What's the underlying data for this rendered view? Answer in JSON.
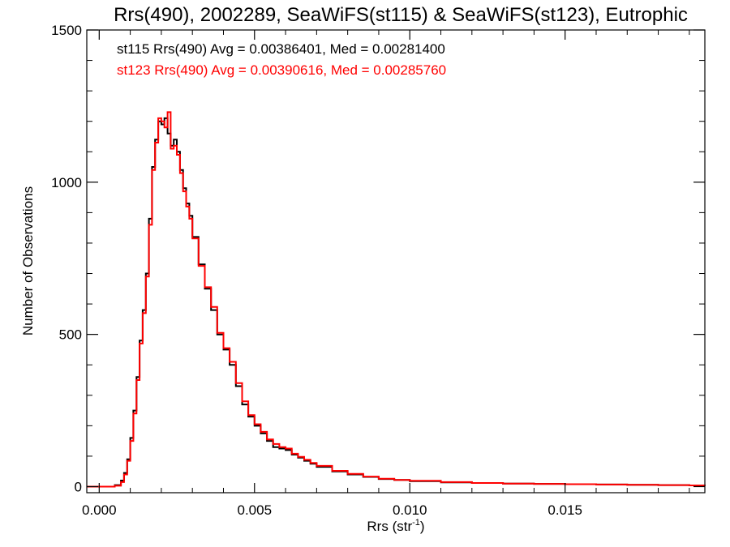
{
  "chart_data": {
    "type": "line",
    "title": "Rrs(490), 2002289, SeaWiFS(st115) & SeaWiFS(st123), Eutrophic",
    "xlabel": "Rrs (str",
    "xlabel_sup": "-1",
    "xlabel_close": ")",
    "ylabel": "Number of Observations",
    "xlim": [
      -0.0004,
      0.0195
    ],
    "ylim": [
      -20,
      1500
    ],
    "xticks": [
      0.0,
      0.005,
      0.01,
      0.015
    ],
    "xtick_labels": [
      "0.000",
      "0.005",
      "0.010",
      "0.015"
    ],
    "yticks": [
      0,
      500,
      1000,
      1500
    ],
    "ytick_labels": [
      "0",
      "500",
      "1000",
      "1500"
    ],
    "grid": false,
    "legend_position": "top-left",
    "annotations": [
      {
        "text": "st115 Rrs(490) Avg = 0.00386401, Med = 0.00281400",
        "color": "#000000"
      },
      {
        "text": "st123 Rrs(490) Avg = 0.00390616, Med = 0.00285760",
        "color": "#ff0000"
      }
    ],
    "series": [
      {
        "color": "#000000",
        "x": [
          -0.0004,
          0.0002,
          0.0005,
          0.0007,
          0.0008,
          0.0009,
          0.001,
          0.0011,
          0.0012,
          0.0013,
          0.0014,
          0.0015,
          0.0016,
          0.0017,
          0.0018,
          0.0019,
          0.002,
          0.0021,
          0.0022,
          0.0023,
          0.0024,
          0.0025,
          0.0026,
          0.0027,
          0.0028,
          0.0029,
          0.003,
          0.0032,
          0.0034,
          0.0036,
          0.0038,
          0.004,
          0.0042,
          0.0044,
          0.0046,
          0.0048,
          0.005,
          0.0052,
          0.0054,
          0.0056,
          0.0058,
          0.006,
          0.0062,
          0.0064,
          0.0066,
          0.0068,
          0.007,
          0.0075,
          0.008,
          0.0085,
          0.009,
          0.0095,
          0.01,
          0.011,
          0.012,
          0.013,
          0.014,
          0.015,
          0.016,
          0.017,
          0.018,
          0.019,
          0.0195
        ],
        "y": [
          0,
          0,
          5,
          20,
          45,
          90,
          160,
          250,
          360,
          480,
          580,
          700,
          880,
          1050,
          1140,
          1200,
          1190,
          1210,
          1160,
          1120,
          1140,
          1100,
          1040,
          980,
          930,
          890,
          820,
          730,
          650,
          580,
          500,
          450,
          400,
          330,
          270,
          230,
          200,
          175,
          150,
          130,
          125,
          120,
          105,
          95,
          85,
          75,
          65,
          50,
          40,
          32,
          25,
          22,
          18,
          14,
          12,
          10,
          9,
          8,
          7,
          6,
          5,
          4,
          3
        ]
      },
      {
        "color": "#ff0000",
        "x": [
          -0.0004,
          0.0002,
          0.0005,
          0.0007,
          0.0008,
          0.0009,
          0.001,
          0.0011,
          0.0012,
          0.0013,
          0.0014,
          0.0015,
          0.0016,
          0.0017,
          0.0018,
          0.0019,
          0.002,
          0.0021,
          0.0022,
          0.0023,
          0.0024,
          0.0025,
          0.0026,
          0.0027,
          0.0028,
          0.0029,
          0.003,
          0.0032,
          0.0034,
          0.0036,
          0.0038,
          0.004,
          0.0042,
          0.0044,
          0.0046,
          0.0048,
          0.005,
          0.0052,
          0.0054,
          0.0056,
          0.0058,
          0.006,
          0.0062,
          0.0064,
          0.0066,
          0.0068,
          0.007,
          0.0075,
          0.008,
          0.0085,
          0.009,
          0.0095,
          0.01,
          0.011,
          0.012,
          0.013,
          0.014,
          0.015,
          0.016,
          0.017,
          0.018,
          0.019,
          0.0195
        ],
        "y": [
          0,
          0,
          3,
          15,
          40,
          85,
          150,
          240,
          350,
          470,
          570,
          690,
          860,
          1040,
          1130,
          1210,
          1200,
          1180,
          1230,
          1110,
          1120,
          1090,
          1030,
          970,
          920,
          880,
          815,
          725,
          655,
          590,
          505,
          455,
          410,
          340,
          280,
          235,
          205,
          180,
          155,
          140,
          130,
          125,
          108,
          98,
          88,
          78,
          68,
          52,
          42,
          33,
          26,
          22,
          19,
          15,
          12,
          10,
          9,
          8,
          7,
          6,
          5,
          4,
          3
        ]
      }
    ]
  }
}
